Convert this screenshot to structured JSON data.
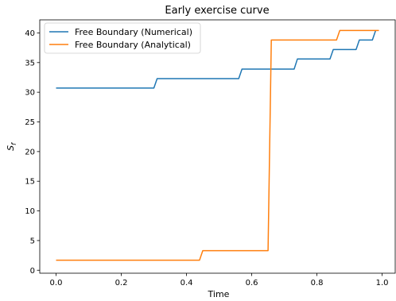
{
  "chart_data": {
    "type": "line",
    "title": "Early exercise curve",
    "xlabel": "Time",
    "ylabel": "S_f",
    "xlim": [
      -0.05,
      1.04
    ],
    "ylim": [
      -0.5,
      42.2
    ],
    "xticks": [
      0.0,
      0.2,
      0.4,
      0.6,
      0.8,
      1.0
    ],
    "xtick_labels": [
      "0.0",
      "0.2",
      "0.4",
      "0.6",
      "0.8",
      "1.0"
    ],
    "yticks": [
      0,
      5,
      10,
      15,
      20,
      25,
      30,
      35,
      40
    ],
    "ytick_labels": [
      "0",
      "5",
      "10",
      "15",
      "20",
      "25",
      "30",
      "35",
      "40"
    ],
    "grid": false,
    "legend": "top-left",
    "series": [
      {
        "name": "Free Boundary (Numerical)",
        "color": "#1f77b4",
        "x": [
          0.0,
          0.3,
          0.31,
          0.56,
          0.57,
          0.73,
          0.74,
          0.84,
          0.85,
          0.92,
          0.93,
          0.97,
          0.98
        ],
        "y": [
          30.7,
          30.7,
          32.3,
          32.3,
          33.9,
          33.9,
          35.6,
          35.6,
          37.2,
          37.2,
          38.8,
          38.8,
          40.4
        ]
      },
      {
        "name": "Free Boundary (Analytical)",
        "color": "#ff7f0e",
        "x": [
          0.0,
          0.44,
          0.45,
          0.65,
          0.66,
          0.86,
          0.87,
          0.99
        ],
        "y": [
          1.7,
          1.7,
          3.3,
          3.3,
          38.8,
          38.8,
          40.4,
          40.4
        ]
      }
    ]
  }
}
